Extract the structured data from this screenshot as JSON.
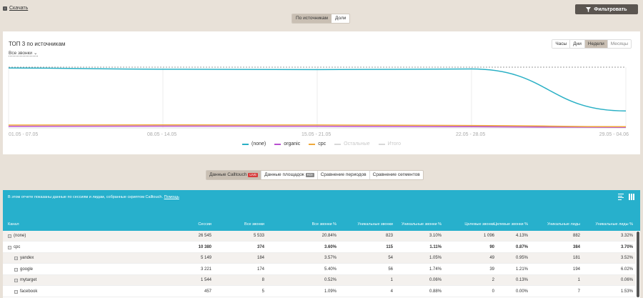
{
  "toolbar": {
    "download_label": "Скачать",
    "filter_label": "Фильтровать"
  },
  "mode_switch": {
    "options": [
      "По источникам",
      "Доли"
    ],
    "active": "По источникам"
  },
  "chart_card": {
    "title": "ТОП 3 по источникам",
    "selector": "Все звонки",
    "periods": [
      "Часы",
      "Дни",
      "Недели",
      "Месяцы"
    ],
    "active_period": "Недели"
  },
  "chart_data": {
    "type": "line",
    "x": [
      "01.05 - 07.05",
      "08.05 - 14.05",
      "15.05 - 21.05",
      "22.05 - 28.05",
      "29.05 - 04.06"
    ],
    "series": [
      {
        "name": "(none)",
        "color": "#2ab0c5",
        "values": [
          1480,
          1450,
          1440,
          1455,
          420
        ]
      },
      {
        "name": "organic",
        "color": "#b84fd0",
        "values": [
          40,
          45,
          42,
          30,
          15
        ]
      },
      {
        "name": "cpc",
        "color": "#f0a93a",
        "values": [
          70,
          75,
          72,
          60,
          30
        ]
      }
    ],
    "inactive_legend": [
      "Остальные",
      "Итого"
    ],
    "grid": true,
    "legend_position": "bottom"
  },
  "tabs": [
    {
      "label": "Данные Calltouch",
      "badge": "LIVE",
      "badge_color": "#d63a3a",
      "active": true
    },
    {
      "label": "Данные площадок",
      "badge": "ROI",
      "badge_color": "#888888",
      "active": false
    },
    {
      "label": "Сравнение периодов",
      "badge": "",
      "badge_color": "",
      "active": false
    },
    {
      "label": "Сравнение сегментов",
      "badge": "",
      "badge_color": "",
      "active": false
    }
  ],
  "info": {
    "text": "В этом отчете показаны данные по сессиям и лидам, собранные скриптом Calltouch.",
    "help": "Помощь"
  },
  "table": {
    "columns": [
      "Канал",
      "Сессии",
      "Все звонки",
      "Все звонки %",
      "Уникальные звонки",
      "Уникальные звонки %",
      "Целевые звонки",
      "Целевые звонки %",
      "Уникальные лиды",
      "Уникальные лиды %"
    ],
    "rows": [
      {
        "name": "(none)",
        "values": [
          "26 545",
          "5 533",
          "20.84%",
          "823",
          "3.10%",
          "1 096",
          "4.13%",
          "882",
          "3.32%"
        ],
        "indent": 0,
        "bold": false
      },
      {
        "name": "cpc",
        "values": [
          "10 380",
          "374",
          "3.60%",
          "115",
          "1.11%",
          "90",
          "0.87%",
          "384",
          "3.70%"
        ],
        "indent": 0,
        "bold": true
      },
      {
        "name": "yandex",
        "values": [
          "5 149",
          "184",
          "3.57%",
          "54",
          "1.05%",
          "49",
          "0.95%",
          "181",
          "3.52%"
        ],
        "indent": 1,
        "bold": false
      },
      {
        "name": "google",
        "values": [
          "3 221",
          "174",
          "5.40%",
          "56",
          "1.74%",
          "39",
          "1.21%",
          "194",
          "6.02%"
        ],
        "indent": 1,
        "bold": false
      },
      {
        "name": "mytarget",
        "values": [
          "1 544",
          "8",
          "0.52%",
          "1",
          "0.06%",
          "2",
          "0.13%",
          "1",
          "0.06%"
        ],
        "indent": 1,
        "bold": false
      },
      {
        "name": "facebook",
        "values": [
          "457",
          "5",
          "1.09%",
          "4",
          "0.88%",
          "0",
          "0.00%",
          "7",
          "1.53%"
        ],
        "indent": 1,
        "bold": false
      }
    ]
  }
}
